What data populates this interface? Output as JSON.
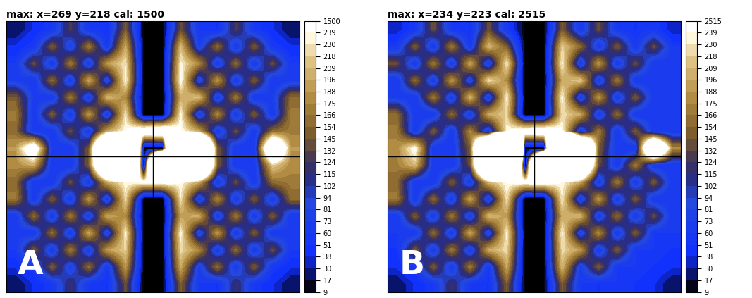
{
  "chart_data": [
    {
      "type": "heatmap",
      "title": "max: x=269 y=218 cal: 1500",
      "annotation": "A",
      "tick_labels": false,
      "cells": [
        [
          20,
          40,
          60,
          130,
          60,
          50,
          150,
          5,
          5,
          140,
          60,
          50,
          130,
          60,
          40,
          20
        ],
        [
          40,
          60,
          150,
          70,
          170,
          60,
          200,
          5,
          5,
          210,
          70,
          160,
          60,
          150,
          60,
          40
        ],
        [
          60,
          140,
          60,
          170,
          60,
          190,
          230,
          5,
          5,
          235,
          180,
          60,
          160,
          60,
          140,
          60
        ],
        [
          70,
          60,
          160,
          60,
          200,
          70,
          240,
          5,
          5,
          245,
          70,
          190,
          60,
          150,
          60,
          70
        ],
        [
          150,
          70,
          60,
          170,
          60,
          210,
          180,
          5,
          5,
          200,
          215,
          60,
          170,
          60,
          70,
          160
        ],
        [
          170,
          60,
          150,
          60,
          190,
          60,
          230,
          5,
          5,
          238,
          60,
          180,
          60,
          150,
          60,
          170
        ],
        [
          160,
          60,
          60,
          140,
          60,
          200,
          240,
          300,
          320,
          242,
          200,
          60,
          140,
          60,
          160,
          170
        ],
        [
          190,
          300,
          60,
          60,
          150,
          600,
          1200,
          5,
          5,
          1300,
          700,
          150,
          60,
          60,
          400,
          190
        ],
        [
          180,
          200,
          60,
          60,
          150,
          500,
          1000,
          5,
          1500,
          1100,
          600,
          150,
          60,
          60,
          220,
          180
        ],
        [
          160,
          60,
          60,
          140,
          60,
          200,
          238,
          250,
          260,
          240,
          200,
          60,
          140,
          60,
          160,
          170
        ],
        [
          170,
          60,
          150,
          60,
          190,
          60,
          225,
          5,
          5,
          230,
          60,
          180,
          60,
          150,
          60,
          160
        ],
        [
          60,
          160,
          60,
          170,
          60,
          200,
          180,
          5,
          5,
          190,
          205,
          60,
          170,
          60,
          150,
          60
        ],
        [
          70,
          60,
          160,
          60,
          200,
          70,
          235,
          5,
          5,
          238,
          70,
          190,
          60,
          150,
          60,
          70
        ],
        [
          60,
          150,
          60,
          170,
          60,
          190,
          220,
          5,
          5,
          225,
          180,
          60,
          160,
          60,
          140,
          60
        ],
        [
          40,
          60,
          150,
          70,
          160,
          60,
          190,
          5,
          5,
          200,
          70,
          160,
          60,
          150,
          60,
          40
        ],
        [
          20,
          40,
          60,
          120,
          60,
          50,
          140,
          5,
          5,
          150,
          60,
          50,
          120,
          60,
          40,
          20
        ]
      ],
      "colorbar_ticks": [
        9,
        17,
        30,
        38,
        51,
        60,
        73,
        81,
        94,
        102,
        115,
        124,
        132,
        145,
        154,
        166,
        175,
        188,
        196,
        209,
        218,
        230,
        239,
        1500
      ]
    },
    {
      "type": "heatmap",
      "title": "max: x=234 y=223 cal: 2515",
      "annotation": "B",
      "tick_labels": false,
      "cells": [
        [
          30,
          60,
          140,
          60,
          50,
          140,
          60,
          5,
          5,
          150,
          60,
          140,
          60,
          50,
          60,
          30
        ],
        [
          60,
          150,
          60,
          170,
          60,
          210,
          150,
          5,
          5,
          220,
          160,
          60,
          150,
          60,
          140,
          60
        ],
        [
          140,
          60,
          170,
          60,
          200,
          60,
          235,
          5,
          5,
          238,
          60,
          190,
          60,
          140,
          60,
          70
        ],
        [
          60,
          160,
          60,
          190,
          70,
          230,
          180,
          5,
          5,
          200,
          220,
          60,
          170,
          60,
          60,
          60
        ],
        [
          70,
          60,
          170,
          60,
          210,
          60,
          238,
          5,
          5,
          240,
          60,
          190,
          60,
          150,
          60,
          70
        ],
        [
          160,
          60,
          60,
          160,
          60,
          200,
          220,
          5,
          5,
          225,
          200,
          60,
          160,
          60,
          60,
          60
        ],
        [
          170,
          60,
          150,
          60,
          180,
          60,
          240,
          280,
          300,
          245,
          60,
          170,
          60,
          150,
          60,
          60
        ],
        [
          180,
          250,
          60,
          60,
          150,
          700,
          2515,
          5,
          5,
          1400,
          650,
          150,
          60,
          60,
          500,
          180
        ],
        [
          170,
          210,
          60,
          60,
          140,
          600,
          1100,
          5,
          1200,
          900,
          500,
          140,
          60,
          170,
          60,
          60
        ],
        [
          160,
          60,
          60,
          150,
          60,
          210,
          240,
          260,
          270,
          238,
          200,
          60,
          170,
          60,
          150,
          60
        ],
        [
          170,
          60,
          160,
          60,
          200,
          60,
          230,
          5,
          5,
          235,
          60,
          190,
          60,
          150,
          60,
          60
        ],
        [
          60,
          150,
          60,
          170,
          60,
          210,
          190,
          5,
          5,
          200,
          210,
          60,
          160,
          60,
          140,
          60
        ],
        [
          60,
          60,
          160,
          60,
          200,
          70,
          238,
          5,
          5,
          238,
          70,
          180,
          60,
          150,
          60,
          60
        ],
        [
          50,
          150,
          60,
          170,
          60,
          200,
          225,
          5,
          5,
          225,
          190,
          60,
          150,
          60,
          60,
          50
        ],
        [
          40,
          60,
          150,
          60,
          170,
          60,
          200,
          5,
          5,
          210,
          70,
          150,
          60,
          60,
          50,
          40
        ],
        [
          20,
          40,
          60,
          120,
          60,
          50,
          150,
          5,
          5,
          150,
          60,
          50,
          60,
          50,
          40,
          20
        ]
      ],
      "colorbar_ticks": [
        9,
        17,
        30,
        38,
        51,
        60,
        73,
        81,
        94,
        102,
        115,
        124,
        132,
        145,
        154,
        166,
        175,
        188,
        196,
        209,
        218,
        230,
        239,
        2515
      ]
    }
  ]
}
